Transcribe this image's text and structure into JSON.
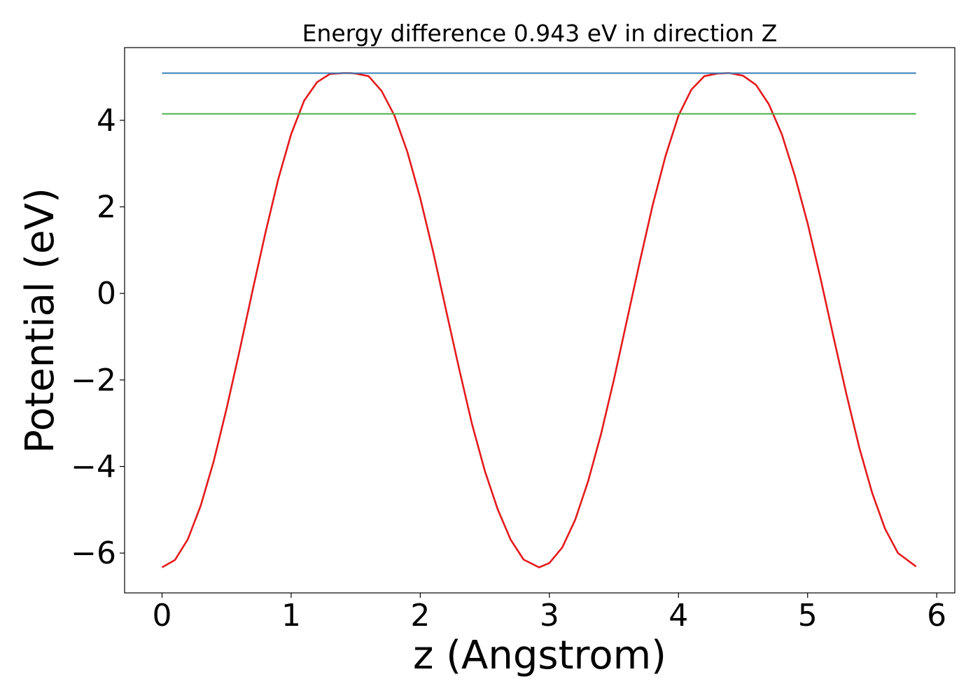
{
  "chart_data": {
    "type": "line",
    "title": "Energy difference 0.943 eV in direction Z",
    "xlabel": "z (Angstrom)",
    "ylabel": "Potential (eV)",
    "xlim": [
      -0.29,
      6.14
    ],
    "ylim": [
      -6.92,
      5.68
    ],
    "xticks": [
      0,
      1,
      2,
      3,
      4,
      5,
      6
    ],
    "xtick_labels": [
      "0",
      "1",
      "2",
      "3",
      "4",
      "5",
      "6"
    ],
    "yticks": [
      -6,
      -4,
      -2,
      0,
      2,
      4
    ],
    "ytick_labels": [
      "−6",
      "−4",
      "−2",
      "0",
      "2",
      "4"
    ],
    "grid": false,
    "series": [
      {
        "kind": "curve",
        "color": "#e41a1c",
        "x": [
          0.0,
          0.1,
          0.2,
          0.3,
          0.4,
          0.5,
          0.6,
          0.7,
          0.8,
          0.9,
          1.0,
          1.1,
          1.2,
          1.3,
          1.4,
          1.46,
          1.5,
          1.6,
          1.7,
          1.8,
          1.9,
          2.0,
          2.1,
          2.2,
          2.3,
          2.4,
          2.5,
          2.6,
          2.7,
          2.8,
          2.92,
          3.0,
          3.1,
          3.2,
          3.3,
          3.4,
          3.5,
          3.6,
          3.7,
          3.8,
          3.9,
          4.0,
          4.1,
          4.2,
          4.3,
          4.38,
          4.4,
          4.5,
          4.6,
          4.7,
          4.8,
          4.9,
          5.0,
          5.1,
          5.2,
          5.3,
          5.4,
          5.5,
          5.6,
          5.7,
          5.84
        ],
        "y": [
          -6.33,
          -6.16,
          -5.68,
          -4.9,
          -3.88,
          -2.66,
          -1.33,
          0.05,
          1.39,
          2.64,
          3.68,
          4.45,
          4.88,
          5.07,
          5.09,
          5.09,
          5.08,
          5.02,
          4.68,
          4.11,
          3.27,
          2.2,
          0.96,
          -0.39,
          -1.73,
          -3.01,
          -4.1,
          -4.99,
          -5.69,
          -6.15,
          -6.33,
          -6.23,
          -5.87,
          -5.23,
          -4.34,
          -3.25,
          -1.99,
          -0.63,
          0.73,
          2.04,
          3.18,
          4.11,
          4.71,
          5.02,
          5.08,
          5.09,
          5.09,
          5.03,
          4.82,
          4.37,
          3.68,
          2.73,
          1.62,
          0.35,
          -1.0,
          -2.32,
          -3.56,
          -4.61,
          -5.44,
          -6.0,
          -6.31
        ]
      },
      {
        "kind": "hline",
        "color": "#377eb8",
        "x": [
          0.0,
          5.84
        ],
        "y": [
          5.09,
          5.09
        ]
      },
      {
        "kind": "hline",
        "color": "#4daf4a",
        "x": [
          0.0,
          5.84
        ],
        "y": [
          4.15,
          4.15
        ]
      }
    ]
  }
}
